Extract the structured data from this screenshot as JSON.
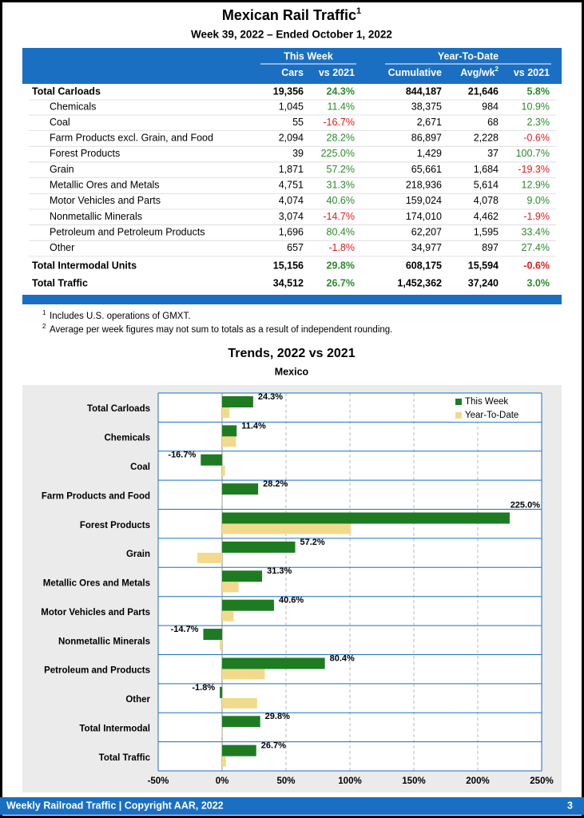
{
  "header": {
    "title": "Mexican Rail Traffic",
    "title_note": "1",
    "subtitle": "Week 39, 2022 – Ended October 1, 2022"
  },
  "table": {
    "groups": [
      "This Week",
      "Year-To-Date"
    ],
    "columns": [
      "Cars",
      "vs 2021",
      "Cumulative",
      "Avg/wk",
      "vs 2021"
    ],
    "column_notes": {
      "3": "2"
    },
    "rows": [
      {
        "total": true,
        "cells": [
          "Total Carloads",
          "19,356",
          "24.3%",
          "844,187",
          "21,646",
          "5.8%"
        ]
      },
      {
        "cells": [
          "Chemicals",
          "1,045",
          "11.4%",
          "38,375",
          "984",
          "10.9%"
        ]
      },
      {
        "cells": [
          "Coal",
          "55",
          "-16.7%",
          "2,671",
          "68",
          "2.3%"
        ]
      },
      {
        "cells": [
          "Farm Products excl. Grain, and Food",
          "2,094",
          "28.2%",
          "86,897",
          "2,228",
          "-0.6%"
        ]
      },
      {
        "cells": [
          "Forest Products",
          "39",
          "225.0%",
          "1,429",
          "37",
          "100.7%"
        ]
      },
      {
        "cells": [
          "Grain",
          "1,871",
          "57.2%",
          "65,661",
          "1,684",
          "-19.3%"
        ]
      },
      {
        "cells": [
          "Metallic Ores and Metals",
          "4,751",
          "31.3%",
          "218,936",
          "5,614",
          "12.9%"
        ]
      },
      {
        "cells": [
          "Motor Vehicles and Parts",
          "4,074",
          "40.6%",
          "159,024",
          "4,078",
          "9.0%"
        ]
      },
      {
        "cells": [
          "Nonmetallic Minerals",
          "3,074",
          "-14.7%",
          "174,010",
          "4,462",
          "-1.9%"
        ]
      },
      {
        "cells": [
          "Petroleum and Petroleum Products",
          "1,696",
          "80.4%",
          "62,207",
          "1,595",
          "33.4%"
        ]
      },
      {
        "cells": [
          "Other",
          "657",
          "-1.8%",
          "34,977",
          "897",
          "27.4%"
        ]
      },
      {
        "total": true,
        "cells": [
          "Total Intermodal Units",
          "15,156",
          "29.8%",
          "608,175",
          "15,594",
          "-0.6%"
        ]
      },
      {
        "total": true,
        "cells": [
          "Total Traffic",
          "34,512",
          "26.7%",
          "1,452,362",
          "37,240",
          "3.0%"
        ]
      }
    ]
  },
  "footnotes": [
    {
      "mark": "1",
      "text": "Includes U.S. operations of GMXT."
    },
    {
      "mark": "2",
      "text": "Average per week figures may not sum to totals as a result of independent rounding."
    }
  ],
  "chart_data": {
    "type": "bar",
    "orientation": "horizontal",
    "title": "Trends, 2022 vs 2021",
    "subtitle": "Mexico",
    "categories": [
      "Total Carloads",
      "Chemicals",
      "Coal",
      "Farm Products and Food",
      "Forest Products",
      "Grain",
      "Metallic Ores and Metals",
      "Motor Vehicles and Parts",
      "Nonmetallic Minerals",
      "Petroleum and Products",
      "Other",
      "Total Intermodal",
      "Total Traffic"
    ],
    "series": [
      {
        "name": "This Week",
        "color": "#1e7b22",
        "values": [
          24.3,
          11.4,
          -16.7,
          28.2,
          225.0,
          57.2,
          31.3,
          40.6,
          -14.7,
          80.4,
          -1.8,
          29.8,
          26.7
        ],
        "value_labels": [
          "24.3%",
          "11.4%",
          "-16.7%",
          "28.2%",
          "225.0%",
          "57.2%",
          "31.3%",
          "40.6%",
          "-14.7%",
          "80.4%",
          "-1.8%",
          "29.8%",
          "26.7%"
        ]
      },
      {
        "name": "Year-To-Date",
        "color": "#f2da8c",
        "values": [
          5.8,
          10.9,
          2.3,
          -0.6,
          100.7,
          -19.3,
          12.9,
          9.0,
          -1.9,
          33.4,
          27.4,
          -0.6,
          3.0
        ]
      }
    ],
    "xlim": [
      -50,
      250
    ],
    "xticks": [
      {
        "value": -50,
        "label": "-50%"
      },
      {
        "value": 0,
        "label": "0%"
      },
      {
        "value": 50,
        "label": "50%"
      },
      {
        "value": 100,
        "label": "100%"
      },
      {
        "value": 150,
        "label": "150%"
      },
      {
        "value": 200,
        "label": "200%"
      },
      {
        "value": 250,
        "label": "250%"
      }
    ],
    "grid": true,
    "legend": "top-right"
  },
  "footer": {
    "left": "Weekly Railroad Traffic | Copyright AAR, 2022",
    "right": "3"
  }
}
